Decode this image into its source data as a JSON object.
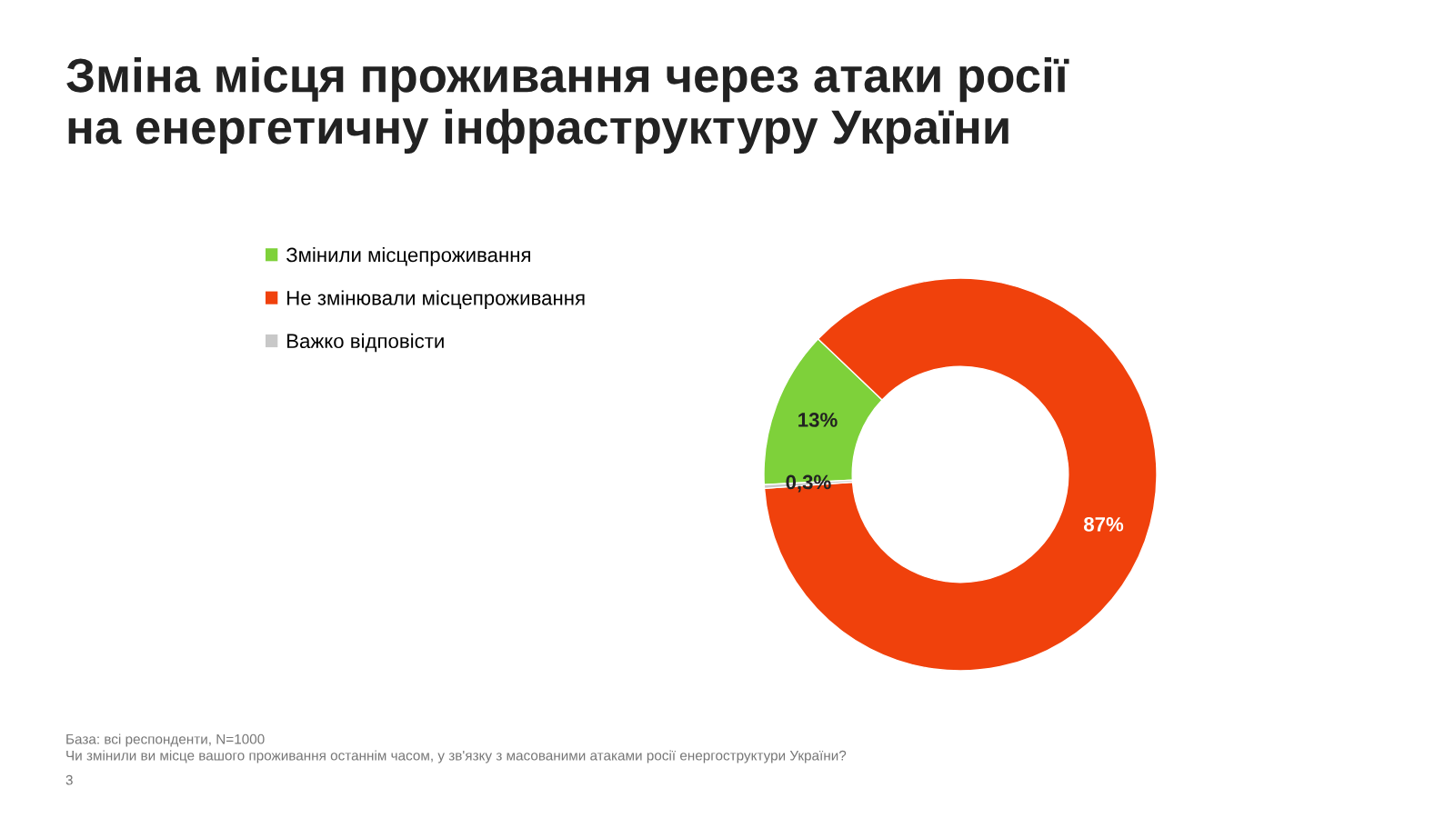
{
  "chart_data": {
    "type": "donut",
    "title": "Зміна місця проживання через атаки росії\nна енергетичну інфраструктуру України",
    "categories": [
      "Змінили місцепроживання",
      "Не змінювали місцепроживання",
      "Важко відповісти"
    ],
    "values": [
      13,
      87,
      0.3
    ],
    "value_labels": [
      "13%",
      "87%",
      "0,3%"
    ],
    "colors": [
      "#7ed13a",
      "#f0410c",
      "#c8c8c8"
    ],
    "legend": "left",
    "annotations": [
      "База: всі респонденти, N=1000",
      "Чи змінили ви місце вашого проживання останнім часом, у зв'язку з масованими атаками росії енергоструктури України?",
      "3"
    ]
  }
}
